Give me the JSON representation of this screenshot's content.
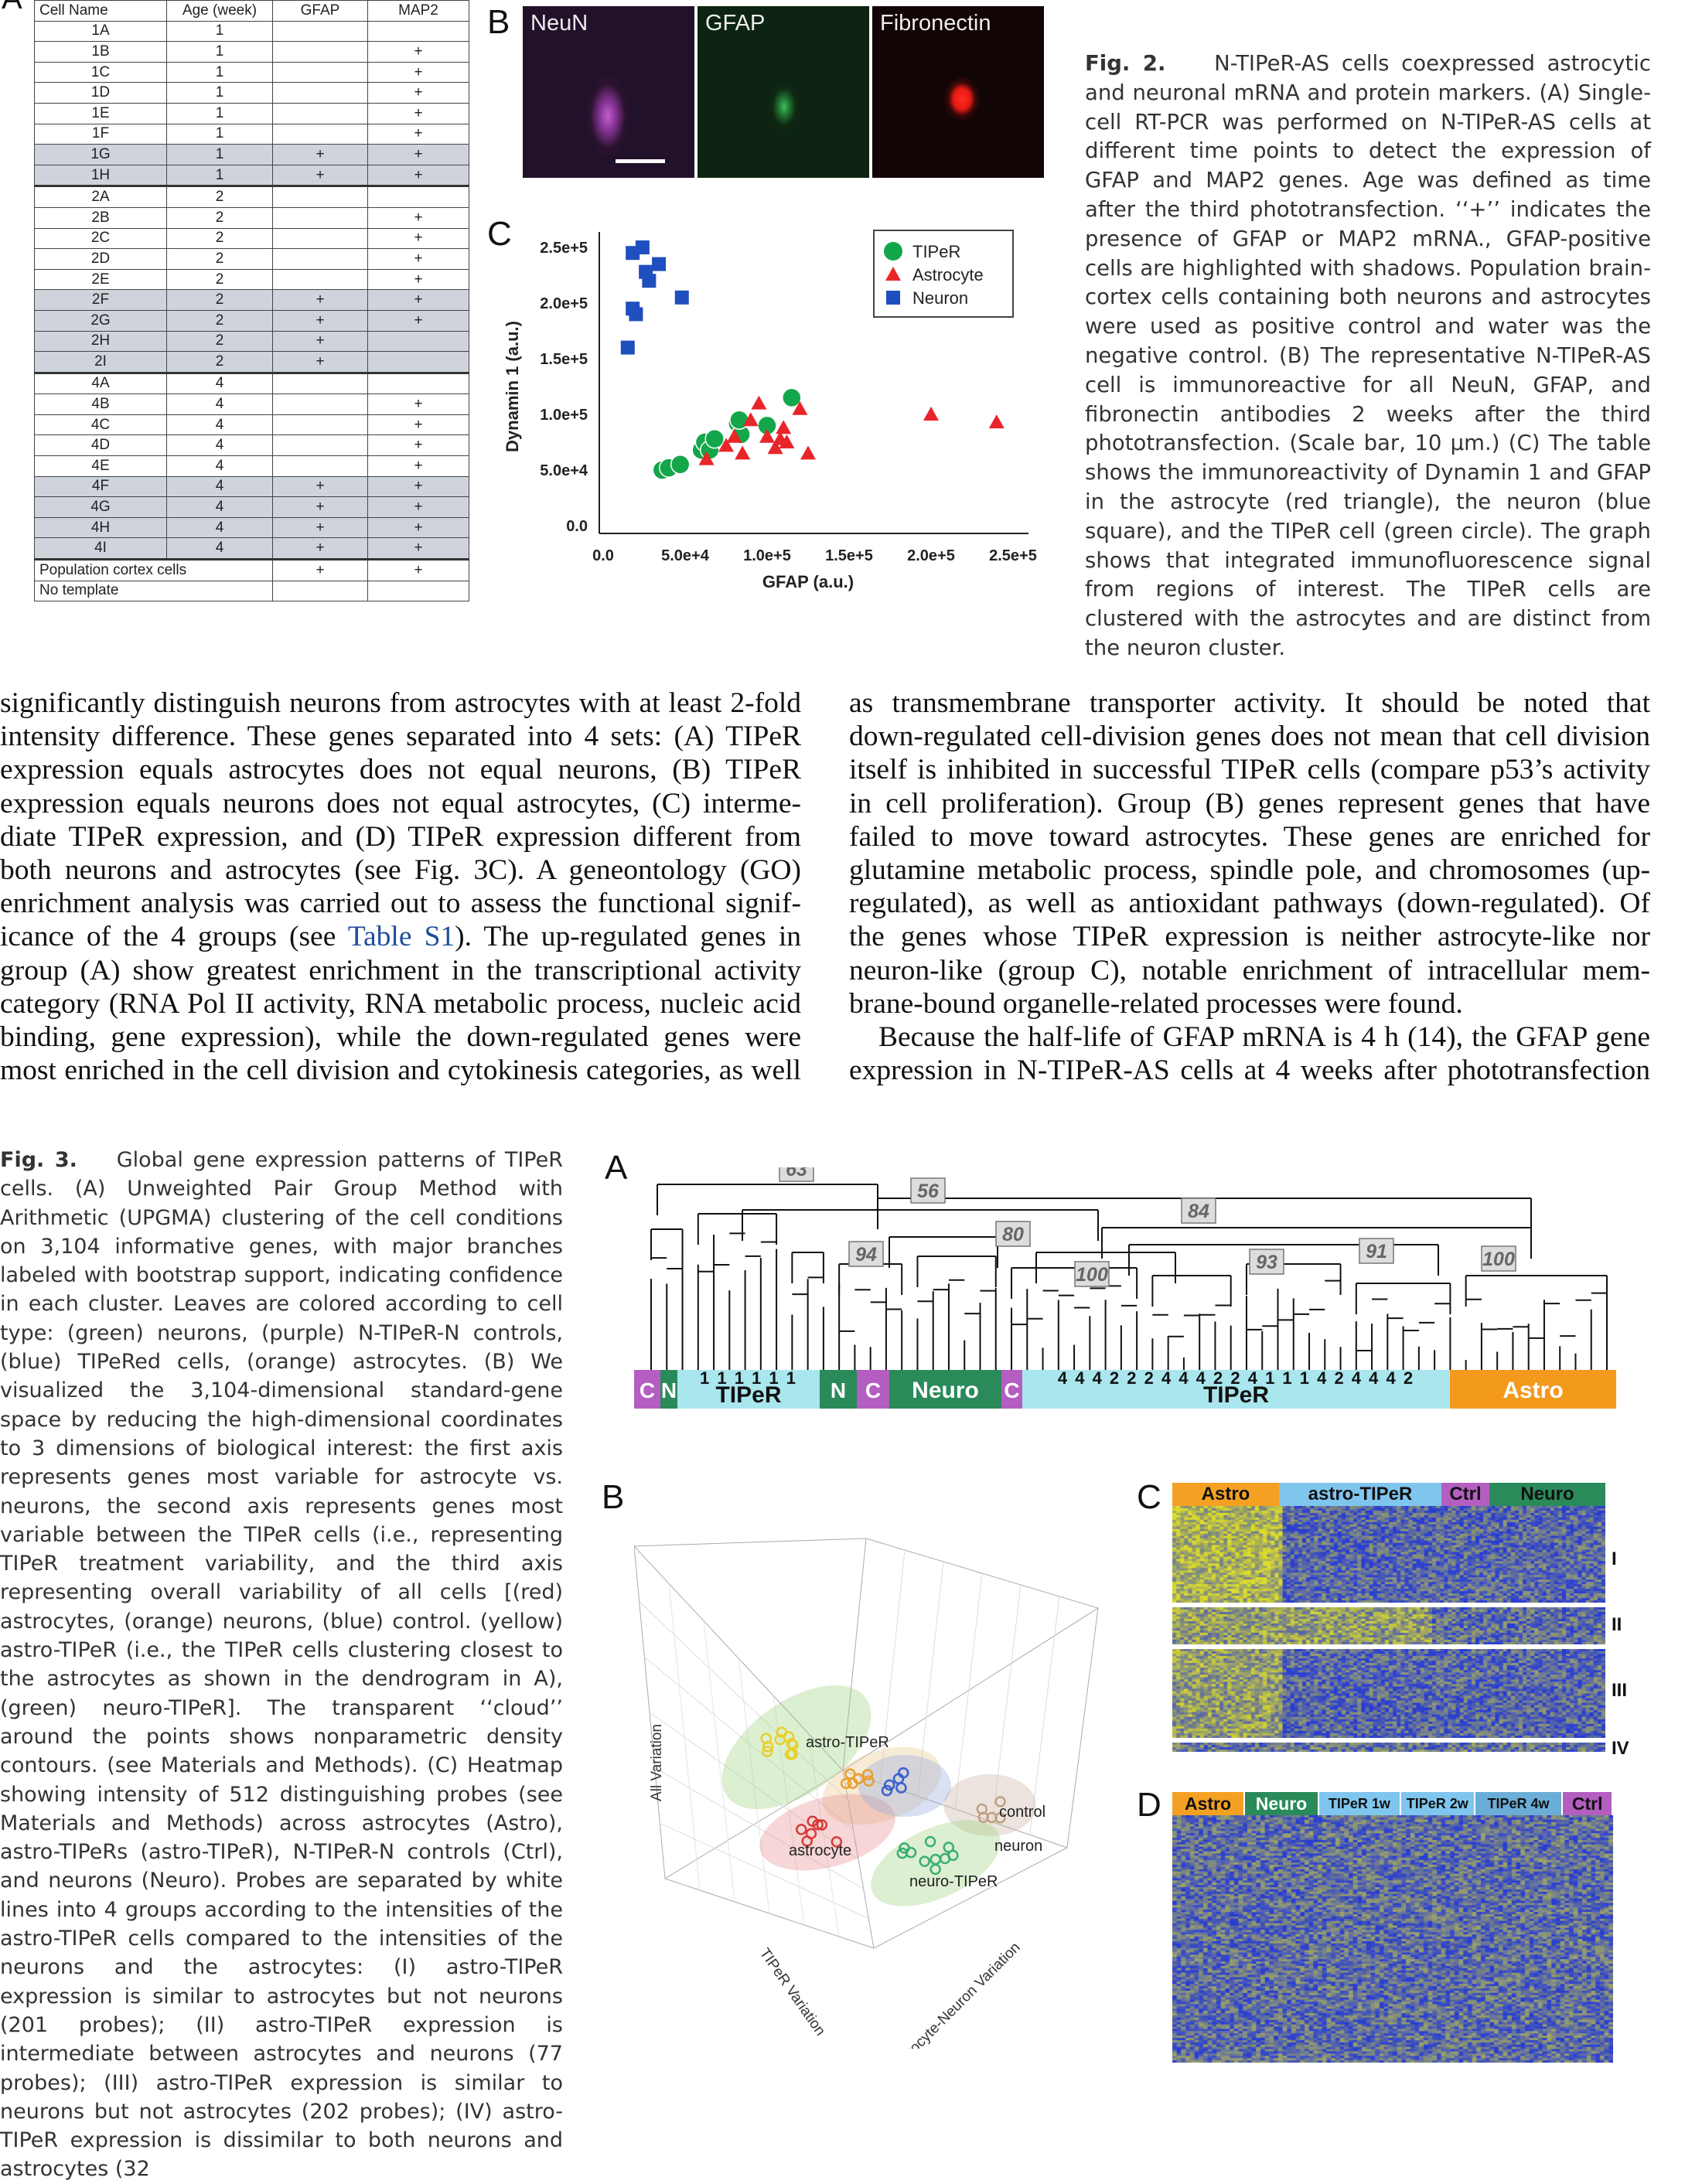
{
  "tableA": {
    "headers": [
      "Cell Name",
      "Age (week)",
      "GFAP",
      "MAP2"
    ],
    "rows": [
      [
        "1A",
        "1",
        "",
        ""
      ],
      [
        "1B",
        "1",
        "",
        "+"
      ],
      [
        "1C",
        "1",
        "",
        "+"
      ],
      [
        "1D",
        "1",
        "",
        "+"
      ],
      [
        "1E",
        "1",
        "",
        "+"
      ],
      [
        "1F",
        "1",
        "",
        "+"
      ],
      [
        "1G",
        "1",
        "+",
        "+"
      ],
      [
        "1H",
        "1",
        "+",
        "+"
      ],
      [
        "2A",
        "2",
        "",
        ""
      ],
      [
        "2B",
        "2",
        "",
        "+"
      ],
      [
        "2C",
        "2",
        "",
        "+"
      ],
      [
        "2D",
        "2",
        "",
        "+"
      ],
      [
        "2E",
        "2",
        "",
        "+"
      ],
      [
        "2F",
        "2",
        "+",
        "+"
      ],
      [
        "2G",
        "2",
        "+",
        "+"
      ],
      [
        "2H",
        "2",
        "+",
        ""
      ],
      [
        "2I",
        "2",
        "+",
        ""
      ],
      [
        "4A",
        "4",
        "",
        ""
      ],
      [
        "4B",
        "4",
        "",
        "+"
      ],
      [
        "4C",
        "4",
        "",
        "+"
      ],
      [
        "4D",
        "4",
        "",
        "+"
      ],
      [
        "4E",
        "4",
        "",
        "+"
      ],
      [
        "4F",
        "4",
        "+",
        "+"
      ],
      [
        "4G",
        "4",
        "+",
        "+"
      ],
      [
        "4H",
        "4",
        "+",
        "+"
      ],
      [
        "4I",
        "4",
        "+",
        "+"
      ],
      [
        "Population cortex cells",
        "",
        "+",
        "+"
      ],
      [
        "No template",
        "",
        "",
        ""
      ]
    ]
  },
  "panelB": {
    "labels": [
      "NeuN",
      "GFAP",
      "Fibronectin"
    ]
  },
  "fig2c": {
    "legend": [
      "TIPeR",
      "Astrocyte",
      "Neuron"
    ],
    "ylabel": "Dynamin 1 (a.u.)",
    "xlabel": "GFAP (a.u.)",
    "yticks": [
      "0.0",
      "5.0e+4",
      "1.0e+5",
      "1.5e+5",
      "2.0e+5",
      "2.5e+5"
    ],
    "xticks": [
      "0.0",
      "5.0e+4",
      "1.0e+5",
      "1.5e+5",
      "2.0e+5",
      "2.5e+5"
    ]
  },
  "chart_data": {
    "type": "scatter",
    "xlabel": "GFAP (a.u.)",
    "ylabel": "Dynamin 1 (a.u.)",
    "xlim": [
      0,
      250000
    ],
    "ylim": [
      0,
      250000
    ],
    "legend_position": "top-right",
    "series": [
      {
        "name": "TIPeR",
        "color": "#14a64a",
        "marker": "circle",
        "points": [
          [
            36000,
            50000
          ],
          [
            40000,
            52000
          ],
          [
            47000,
            55000
          ],
          [
            60000,
            68000
          ],
          [
            62000,
            75000
          ],
          [
            65000,
            68000
          ],
          [
            68000,
            78000
          ],
          [
            82000,
            92000
          ],
          [
            84000,
            82000
          ],
          [
            83000,
            95000
          ],
          [
            100000,
            90000
          ],
          [
            115000,
            115000
          ]
        ]
      },
      {
        "name": "Astrocyte",
        "color": "#e8262a",
        "marker": "triangle",
        "points": [
          [
            63000,
            60000
          ],
          [
            75000,
            72000
          ],
          [
            80000,
            80000
          ],
          [
            85000,
            65000
          ],
          [
            90000,
            95000
          ],
          [
            95000,
            110000
          ],
          [
            100000,
            80000
          ],
          [
            105000,
            70000
          ],
          [
            108000,
            78000
          ],
          [
            110000,
            88000
          ],
          [
            112000,
            75000
          ],
          [
            120000,
            105000
          ],
          [
            125000,
            65000
          ],
          [
            200000,
            100000
          ],
          [
            240000,
            93000
          ]
        ]
      },
      {
        "name": "Neuron",
        "color": "#1f4fbe",
        "marker": "square",
        "points": [
          [
            18000,
            245000
          ],
          [
            24000,
            250000
          ],
          [
            26000,
            228000
          ],
          [
            28000,
            220000
          ],
          [
            34000,
            235000
          ],
          [
            18000,
            195000
          ],
          [
            20000,
            190000
          ],
          [
            15000,
            160000
          ],
          [
            48000,
            205000
          ]
        ]
      }
    ]
  },
  "caption2": {
    "label": "Fig. 2.",
    "text": "N-TIPeR-AS cells coexpressed astrocytic and neuronal mRNA and protein markers. (A) Single-cell RT-PCR was performed on N-TIPeR-AS cells at different time points to detect the expression of GFAP and MAP2 genes. Age was defined as time after the third phototransfection. ‘‘+’’ indicates the presence of GFAP or MAP2 mRNA., GFAP-positive cells are highlighted with shadows. Population brain-cortex cells containing both neurons and astrocytes were used as positive control and water was the negative control. (B) The representative N-TIPeR-AS cell is immunoreactive for all NeuN, GFAP, and fibronectin antibodies 2 weeks after the third phototransfection. (Scale bar, 10 μm.) (C) The table shows the immunoreactivity of Dynamin 1 and GFAP in the astrocyte (red triangle), the neuron (blue square), and the TIPeR cell (green circle). The graph shows that integrated immunofluorescence signal from regions of interest. The TIPeR cells are clustered with the astrocytes and are distinct from the neuron cluster."
  },
  "bodyLeft": [
    "significantly distinguish neurons from astrocytes with at least 2-fold",
    "intensity difference. These genes separated into 4 sets: (A) TIPeR",
    "expression equals astrocytes does not equal neurons, (B) TIPeR",
    "expression equals neurons does not equal astrocytes, (C) interme-",
    "diate TIPeR expression, and (D) TIPeR expression different from",
    "both neurons and astrocytes (see Fig. 3C). A geneontology (GO)",
    "enrichment analysis was carried out to assess the functional signif-",
    "icance of the 4 groups (see ",
    "group (A) show greatest enrichment in the transcriptional activity",
    "category (RNA Pol II activity, RNA metabolic process, nucleic acid",
    "binding, gene expression), while the down-regulated genes were",
    "most enriched in the cell division and cytokinesis categories, as well"
  ],
  "bodyLeftLink": "Table S1",
  "bodyLeftAfterLink": "). The up-regulated genes in",
  "bodyRight": [
    "as transmembrane transporter activity. It should be noted that",
    "down-regulated cell-division genes does not mean that cell division",
    "itself is inhibited in successful TIPeR cells (compare p53’s activity",
    "in cell proliferation). Group (B) genes represent genes that have",
    "failed to move toward astrocytes. These genes are enriched for",
    "glutamine metabolic process, spindle pole, and chromosomes (up-",
    "regulated), as well as antioxidant pathways (down-regulated). Of",
    "the genes whose TIPeR expression is neither astrocyte-like nor",
    "neuron-like (group C), notable enrichment of intracellular mem-",
    "brane-bound organelle-related processes were found.",
    "Because the half-life of GFAP mRNA is 4 h (14), the GFAP gene",
    "expression in N-TIPeR-AS cells at 4 weeks after phototransfection"
  ],
  "caption3": {
    "label": "Fig. 3.",
    "text": "Global gene expression patterns of TIPeR cells. (A) Unweighted Pair Group Method with Arithmetic (UPGMA) clustering of the cell conditions on 3,104 informative genes, with major branches labeled with bootstrap support, indicating confidence in each cluster. Leaves are colored according to cell type: (green) neurons, (purple) N-TIPeR-N controls, (blue) TIPeRed cells, (orange) astrocytes. (B) We visualized the 3,104-dimensional standard-gene space by reducing the high-dimensional coordinates to 3 dimensions of biological interest: the first axis represents genes most variable for astrocyte vs. neurons, the second axis represents genes most variable between the TIPeR cells (i.e., representing TIPeR treatment variability, and the third axis representing overall variability of all cells [(red) astrocytes, (orange) neurons, (blue) control. (yellow) astro-TIPeR (i.e., the TIPeR cells clustering closest to the astrocytes as shown in the dendrogram in A), (green) neuro-TIPeR]. The transparent ‘‘cloud’’ around the points shows nonparametric density contours. (see Materials and Methods). (C) Heatmap showing intensity of 512 distinguishing probes (see Materials and Methods) across astrocytes (Astro), astro-TIPeRs (astro-TIPeR), N-TIPeR-N controls (Ctrl), and neurons (Neuro). Probes are separated by white lines into 4 groups according to the intensities of the astro-TIPeR cells compared to the intensities of the neurons and the astrocytes: (I) astro-TIPeR expression is similar to astrocytes but not neurons (201 probes); (II) astro-TIPeR expression is intermediate between astrocytes and neurons (77 probes); (III) astro-TIPeR expression is similar to neurons but not astrocytes (202 probes); (IV) astro-TIPeR expression is dissimilar to both neurons and astrocytes (32"
  },
  "fig3a": {
    "bootstrap": [
      "63",
      "56",
      "84",
      "80",
      "94",
      "100",
      "93",
      "91",
      "100"
    ],
    "leafbar": [
      {
        "text": "C",
        "color": "#b45ec1"
      },
      {
        "text": "N",
        "color": "#2a8a5a"
      },
      {
        "text": "TIPeR",
        "color": "#a9e6ee",
        "digits": "1 1 1 1 1 1"
      },
      {
        "text": "N",
        "color": "#2a8a5a"
      },
      {
        "text": "C",
        "color": "#b45ec1"
      },
      {
        "text": "Neuro",
        "color": "#2a8a5a"
      },
      {
        "text": "C",
        "color": "#b45ec1"
      },
      {
        "text": "TIPeR",
        "color": "#a9e6ee",
        "digits": "4 4 4 2 2 2 4 4 4 2 2 4 1 1 1 4 2 4 4 4 2"
      },
      {
        "text": "Astro",
        "color": "#f39a1c"
      }
    ]
  },
  "fig3b": {
    "labels": [
      "astro-TIPeR",
      "control",
      "astrocyte",
      "neuron",
      "neuro-TIPeR"
    ],
    "axes": [
      "All Variation",
      "TIPeR Variation",
      "Astrocyte-Neuron Variation"
    ]
  },
  "fig3c": {
    "header": [
      {
        "text": "Astro",
        "color": "#f4a123"
      },
      {
        "text": "astro-TIPeR",
        "color": "#7fc6ef"
      },
      {
        "text": "Ctrl",
        "color": "#b45ec1"
      },
      {
        "text": "Neuro",
        "color": "#2a8a5a"
      }
    ],
    "groups": [
      "I",
      "II",
      "III",
      "IV"
    ]
  },
  "fig3d": {
    "header": [
      {
        "text": "Astro",
        "color": "#f4a123"
      },
      {
        "text": "Neuro",
        "color": "#2a8a5a"
      },
      {
        "text": "TIPeR 1w",
        "color": "#7fc6ef"
      },
      {
        "text": "TIPeR 2w",
        "color": "#7fc6ef"
      },
      {
        "text": "TIPeR 4w",
        "color": "#6aaed8"
      },
      {
        "text": "Ctrl",
        "color": "#b45ec1"
      }
    ]
  },
  "panelLetters": {
    "a": "A",
    "b": "B",
    "c": "C",
    "fig3a": "A",
    "fig3b": "B",
    "fig3c": "C",
    "fig3d": "D"
  }
}
